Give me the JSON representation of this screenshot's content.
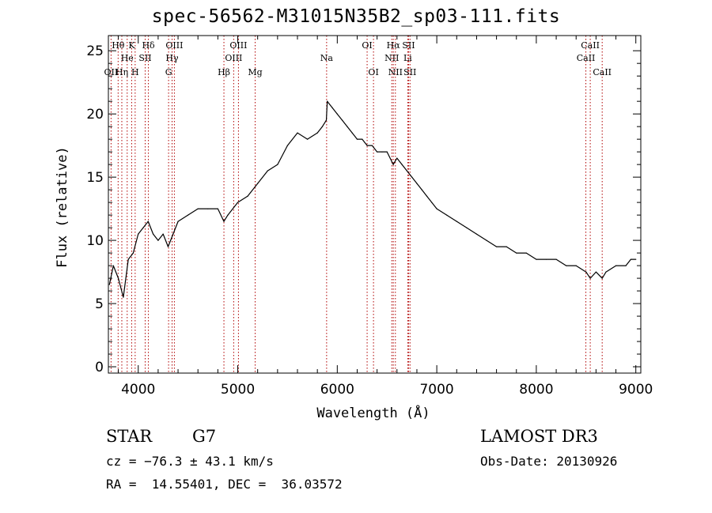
{
  "chart_data": {
    "type": "line",
    "title": "spec-56562-M31015N35B2_sp03-111.fits",
    "xlabel": "Wavelength (Å)",
    "ylabel": "Flux (relative)",
    "xlim": [
      3700,
      9050
    ],
    "ylim": [
      -0.5,
      26.2
    ],
    "xticks": [
      4000,
      5000,
      6000,
      7000,
      8000,
      9000
    ],
    "yticks": [
      0,
      5,
      10,
      15,
      20,
      25
    ],
    "series": [
      {
        "name": "flux",
        "color": "#000000",
        "x": [
          3710,
          3750,
          3800,
          3850,
          3900,
          3950,
          4000,
          4050,
          4100,
          4150,
          4200,
          4250,
          4300,
          4350,
          4400,
          4500,
          4600,
          4700,
          4800,
          4861,
          4900,
          5000,
          5100,
          5200,
          5300,
          5400,
          5500,
          5600,
          5700,
          5800,
          5850,
          5890,
          5900,
          5950,
          6000,
          6050,
          6100,
          6150,
          6200,
          6250,
          6300,
          6350,
          6400,
          6450,
          6500,
          6563,
          6600,
          6650,
          6700,
          6750,
          6800,
          6850,
          6900,
          6950,
          7000,
          7100,
          7200,
          7300,
          7400,
          7500,
          7600,
          7700,
          7800,
          7900,
          8000,
          8100,
          8200,
          8300,
          8400,
          8500,
          8542,
          8600,
          8662,
          8700,
          8800,
          8900,
          8950,
          9000
        ],
        "y": [
          6.5,
          8.0,
          7.0,
          5.5,
          8.5,
          9.0,
          10.5,
          11.0,
          11.5,
          10.5,
          10.0,
          10.5,
          9.5,
          10.5,
          11.5,
          12.0,
          12.5,
          12.5,
          12.5,
          11.5,
          12.0,
          13.0,
          13.5,
          14.5,
          15.5,
          16.0,
          17.5,
          18.5,
          18.0,
          18.5,
          19.0,
          19.5,
          21.0,
          20.5,
          20.0,
          19.5,
          19.0,
          18.5,
          18.0,
          18.0,
          17.5,
          17.5,
          17.0,
          17.0,
          17.0,
          16.0,
          16.5,
          16.0,
          15.5,
          15.0,
          14.5,
          14.0,
          13.5,
          13.0,
          12.5,
          12.0,
          11.5,
          11.0,
          10.5,
          10.0,
          9.5,
          9.5,
          9.0,
          9.0,
          8.5,
          8.5,
          8.5,
          8.0,
          8.0,
          7.5,
          7.0,
          7.5,
          7.0,
          7.5,
          8.0,
          8.0,
          8.5,
          8.5
        ]
      }
    ],
    "lines": [
      {
        "label": "Hθ",
        "wl": 3798,
        "row": 0
      },
      {
        "label": "OII",
        "wl": 3727,
        "row": 2
      },
      {
        "label": "He",
        "wl": 3889,
        "row": 1
      },
      {
        "label": "Hη",
        "wl": 3835,
        "row": 2
      },
      {
        "label": "K",
        "wl": 3934,
        "row": 0
      },
      {
        "label": "H",
        "wl": 3969,
        "row": 2
      },
      {
        "label": "SII",
        "wl": 4070,
        "row": 1
      },
      {
        "label": "Hδ",
        "wl": 4102,
        "row": 0
      },
      {
        "label": "OIII",
        "wl": 4363,
        "row": 0
      },
      {
        "label": "Hγ",
        "wl": 4340,
        "row": 1
      },
      {
        "label": "G",
        "wl": 4305,
        "row": 2
      },
      {
        "label": "Hβ",
        "wl": 4861,
        "row": 2
      },
      {
        "label": "OIII",
        "wl": 5007,
        "row": 0
      },
      {
        "label": "OIII",
        "wl": 4959,
        "row": 1
      },
      {
        "label": "Mg",
        "wl": 5175,
        "row": 2
      },
      {
        "label": "Na",
        "wl": 5893,
        "row": 1
      },
      {
        "label": "OI",
        "wl": 6300,
        "row": 0
      },
      {
        "label": "OI",
        "wl": 6364,
        "row": 2
      },
      {
        "label": "Hα",
        "wl": 6563,
        "row": 0
      },
      {
        "label": "NII",
        "wl": 6548,
        "row": 1
      },
      {
        "label": "NII",
        "wl": 6584,
        "row": 2
      },
      {
        "label": "SII",
        "wl": 6717,
        "row": 0
      },
      {
        "label": "Li",
        "wl": 6708,
        "row": 1
      },
      {
        "label": "SII",
        "wl": 6731,
        "row": 2
      },
      {
        "label": "CaII",
        "wl": 8542,
        "row": 0
      },
      {
        "label": "CaII",
        "wl": 8498,
        "row": 1
      },
      {
        "label": "CaII",
        "wl": 8662,
        "row": 2
      }
    ],
    "line_color": "#b00000"
  },
  "info": {
    "class": "STAR",
    "subclass": "G7",
    "cz": "cz = −76.3 ± 43.1 km/s",
    "radec": "RA =  14.55401, DEC =  36.03572",
    "survey": "LAMOST DR3",
    "obsdate": "Obs-Date: 20130926"
  }
}
